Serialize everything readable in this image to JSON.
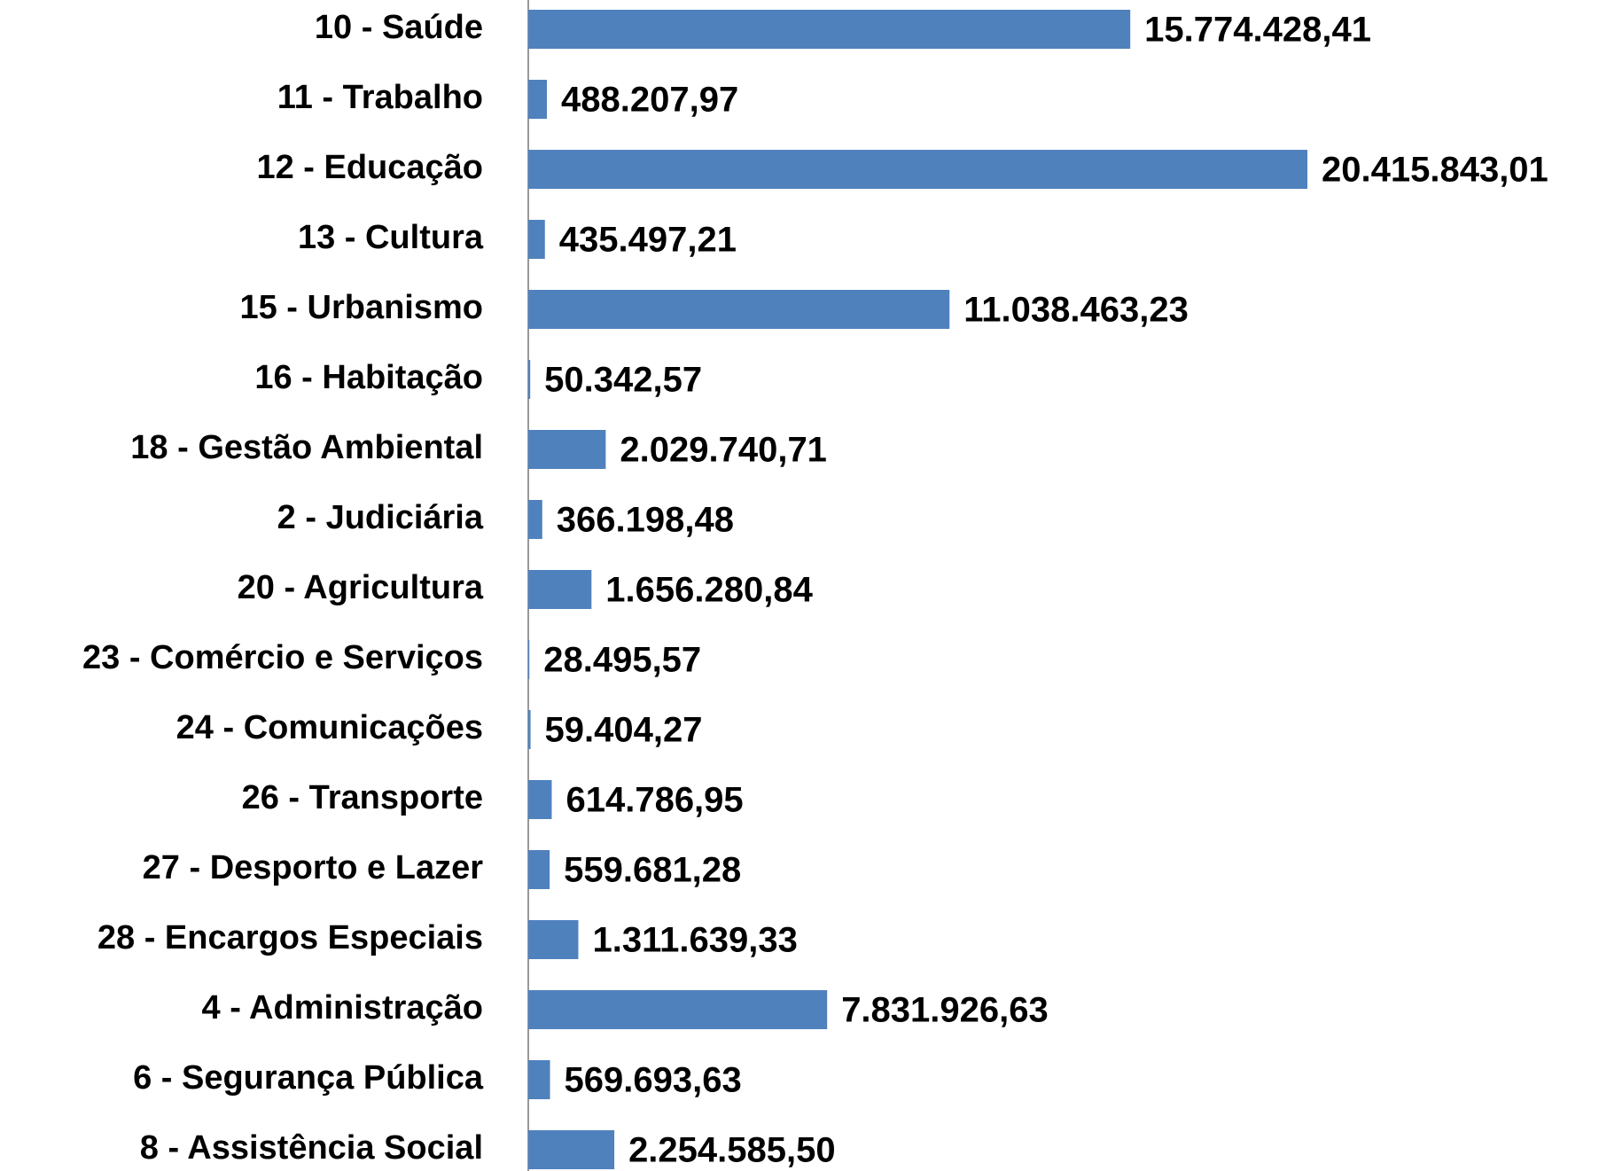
{
  "chart_data": {
    "type": "bar",
    "orientation": "horizontal",
    "color": "#4f81bd",
    "categories": [
      "10 - Saúde",
      "11 - Trabalho",
      "12 - Educação",
      "13 - Cultura",
      "15 - Urbanismo",
      "16 - Habitação",
      "18 - Gestão Ambiental",
      "2 - Judiciária",
      "20 - Agricultura",
      "23 - Comércio e Serviços",
      "24 - Comunicações",
      "26 - Transporte",
      "27 - Desporto e Lazer",
      "28 - Encargos Especiais",
      "4 - Administração",
      "6 - Segurança Pública",
      "8 - Assistência Social"
    ],
    "values": [
      15774428.41,
      488207.97,
      20415843.01,
      435497.21,
      11038463.23,
      50342.57,
      2029740.71,
      366198.48,
      1656280.84,
      28495.57,
      59404.27,
      614786.95,
      559681.28,
      1311639.33,
      7831926.63,
      569693.63,
      2254585.5
    ],
    "value_labels": [
      "15.774.428,41",
      "488.207,97",
      "20.415.843,01",
      "435.497,21",
      "11.038.463,23",
      "50.342,57",
      "2.029.740,71",
      "366.198,48",
      "1.656.280,84",
      "28.495,57",
      "59.404,27",
      "614.786,95",
      "559.681,28",
      "1.311.639,33",
      "7.831.926,63",
      "569.693,63",
      "2.254.585,50"
    ]
  }
}
